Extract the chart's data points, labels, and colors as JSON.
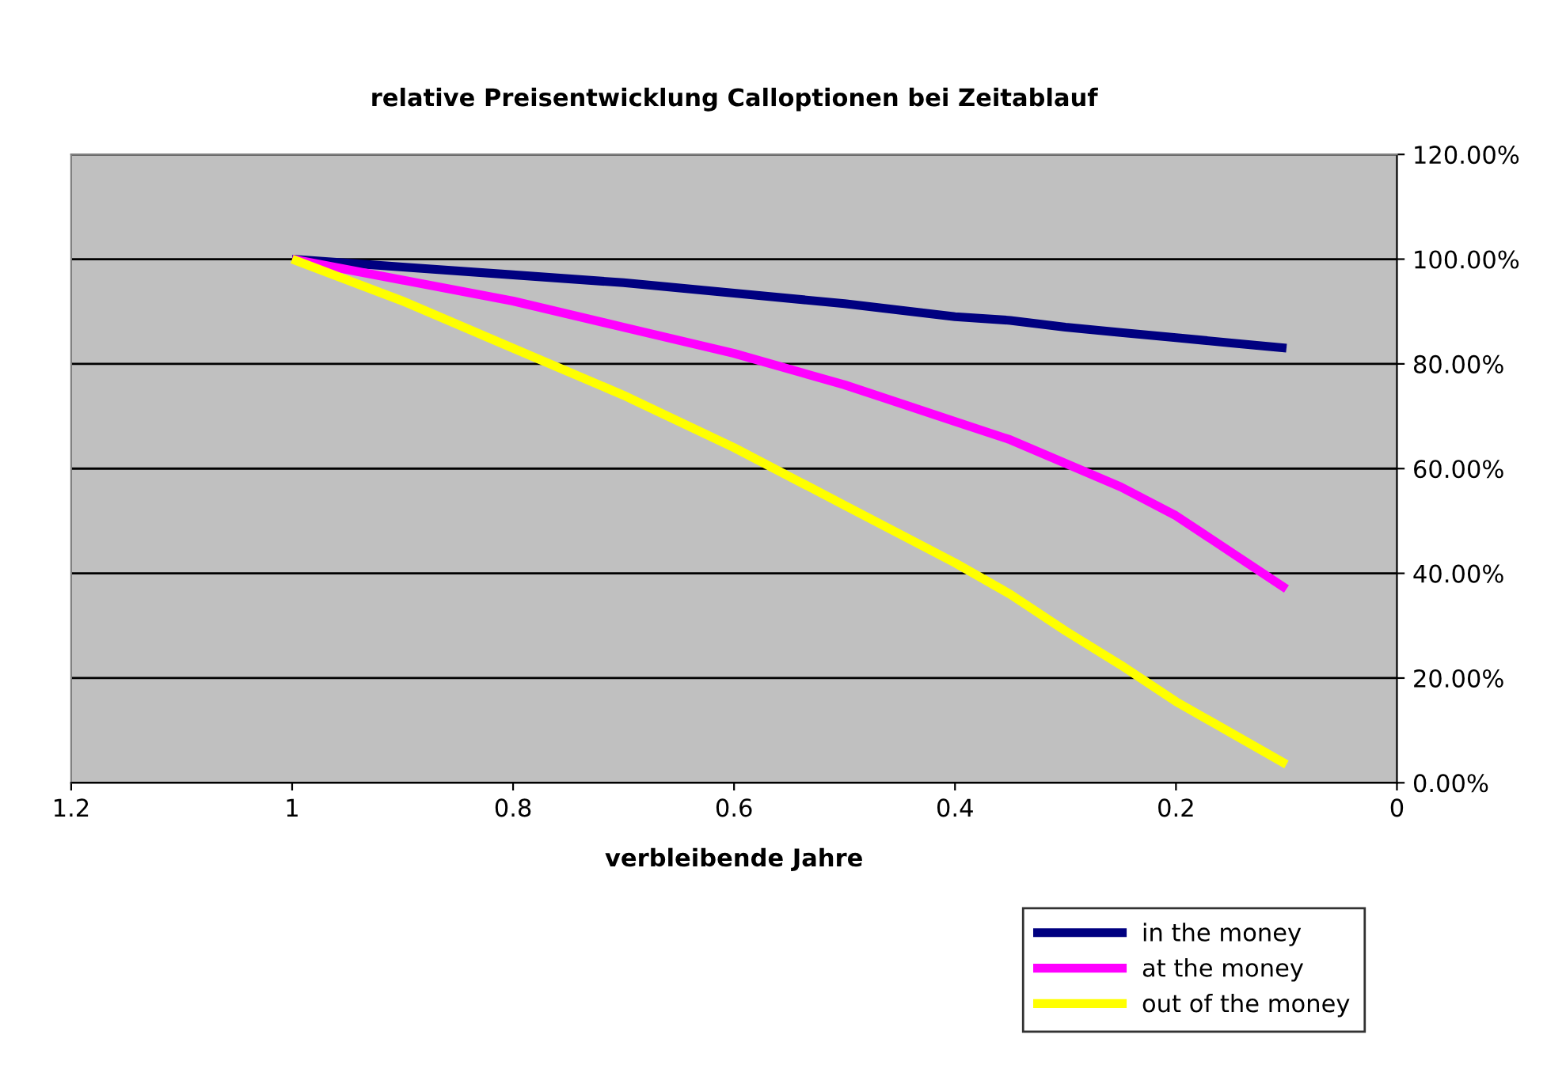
{
  "chart_data": {
    "type": "line",
    "title": "relative Preisentwicklung Calloptionen bei Zeitablauf",
    "xlabel": "verbleibende Jahre",
    "x": [
      1,
      0.9,
      0.8,
      0.7,
      0.6,
      0.5,
      0.4,
      0.35,
      0.3,
      0.25,
      0.2,
      0.15,
      0.1
    ],
    "series": [
      {
        "name": "in the money",
        "color": "#000080",
        "values": [
          100,
          98.5,
          97,
          95.5,
          93.5,
          91.5,
          89,
          88.3,
          87,
          86,
          85,
          84,
          83
        ]
      },
      {
        "name": "at the money",
        "color": "#ff00ff",
        "values": [
          100,
          96,
          92,
          87,
          82,
          76,
          69,
          65.5,
          61,
          56.5,
          51,
          44,
          37
        ]
      },
      {
        "name": "out of the money",
        "color": "#ffff00",
        "values": [
          100,
          92,
          83,
          74,
          64,
          53,
          42,
          36,
          29,
          22.5,
          15.5,
          9.5,
          3.5
        ]
      }
    ],
    "xlim": [
      1.2,
      0
    ],
    "xticks": [
      1.2,
      1,
      0.8,
      0.6,
      0.4,
      0.2,
      0
    ],
    "ylim": [
      0,
      120
    ],
    "yticks": [
      {
        "value": 0,
        "label": "0.00%"
      },
      {
        "value": 20,
        "label": "20.00%"
      },
      {
        "value": 40,
        "label": "40.00%"
      },
      {
        "value": 60,
        "label": "60.00%"
      },
      {
        "value": 80,
        "label": "80.00%"
      },
      {
        "value": 100,
        "label": "100.00%"
      },
      {
        "value": 120,
        "label": "120.00%"
      }
    ],
    "grid": "y",
    "legend": "bottom right",
    "marker": "none",
    "line_style": "solid"
  }
}
